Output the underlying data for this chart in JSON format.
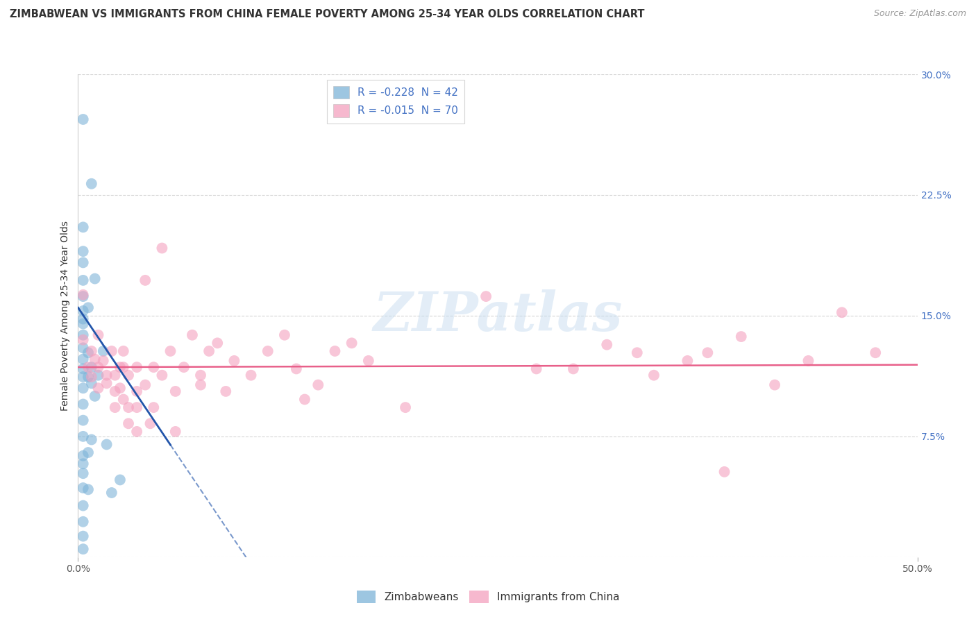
{
  "title": "ZIMBABWEAN VS IMMIGRANTS FROM CHINA FEMALE POVERTY AMONG 25-34 YEAR OLDS CORRELATION CHART",
  "source": "Source: ZipAtlas.com",
  "ylabel": "Female Poverty Among 25-34 Year Olds",
  "xlim": [
    0.0,
    0.5
  ],
  "ylim": [
    0.0,
    0.3
  ],
  "xtick_positions": [
    0.0,
    0.5
  ],
  "xtick_labels": [
    "0.0%",
    "50.0%"
  ],
  "ytick_positions": [
    0.0,
    0.075,
    0.15,
    0.225,
    0.3
  ],
  "ytick_labels": [
    "",
    "7.5%",
    "15.0%",
    "22.5%",
    "30.0%"
  ],
  "right_ytick_color": "#4472c4",
  "legend_entry1": "R = -0.228  N = 42",
  "legend_entry2": "R = -0.015  N = 70",
  "legend_text_color": "#4472c4",
  "blue_scatter_color": "#7db3d8",
  "pink_scatter_color": "#f4a0be",
  "blue_line_color": "#2255aa",
  "pink_line_color": "#e8608a",
  "watermark_color": "#c8ddf0",
  "grid_color": "#cccccc",
  "background_color": "#ffffff",
  "zimbabwean_points": [
    [
      0.003,
      0.272
    ],
    [
      0.003,
      0.205
    ],
    [
      0.003,
      0.19
    ],
    [
      0.003,
      0.183
    ],
    [
      0.003,
      0.172
    ],
    [
      0.003,
      0.162
    ],
    [
      0.003,
      0.153
    ],
    [
      0.003,
      0.145
    ],
    [
      0.003,
      0.138
    ],
    [
      0.003,
      0.13
    ],
    [
      0.003,
      0.123
    ],
    [
      0.003,
      0.117
    ],
    [
      0.003,
      0.112
    ],
    [
      0.003,
      0.105
    ],
    [
      0.003,
      0.095
    ],
    [
      0.003,
      0.085
    ],
    [
      0.003,
      0.075
    ],
    [
      0.003,
      0.063
    ],
    [
      0.003,
      0.052
    ],
    [
      0.003,
      0.043
    ],
    [
      0.003,
      0.032
    ],
    [
      0.003,
      0.022
    ],
    [
      0.003,
      0.013
    ],
    [
      0.003,
      0.005
    ],
    [
      0.006,
      0.127
    ],
    [
      0.006,
      0.112
    ],
    [
      0.006,
      0.065
    ],
    [
      0.006,
      0.042
    ],
    [
      0.008,
      0.232
    ],
    [
      0.008,
      0.118
    ],
    [
      0.008,
      0.073
    ],
    [
      0.01,
      0.173
    ],
    [
      0.01,
      0.1
    ],
    [
      0.012,
      0.113
    ],
    [
      0.015,
      0.128
    ],
    [
      0.017,
      0.07
    ],
    [
      0.02,
      0.04
    ],
    [
      0.025,
      0.048
    ],
    [
      0.003,
      0.148
    ],
    [
      0.003,
      0.058
    ],
    [
      0.006,
      0.155
    ],
    [
      0.008,
      0.108
    ]
  ],
  "china_points": [
    [
      0.003,
      0.163
    ],
    [
      0.003,
      0.135
    ],
    [
      0.006,
      0.118
    ],
    [
      0.008,
      0.128
    ],
    [
      0.008,
      0.112
    ],
    [
      0.01,
      0.123
    ],
    [
      0.012,
      0.138
    ],
    [
      0.012,
      0.118
    ],
    [
      0.012,
      0.105
    ],
    [
      0.015,
      0.122
    ],
    [
      0.017,
      0.113
    ],
    [
      0.017,
      0.108
    ],
    [
      0.02,
      0.128
    ],
    [
      0.022,
      0.113
    ],
    [
      0.022,
      0.103
    ],
    [
      0.022,
      0.093
    ],
    [
      0.025,
      0.118
    ],
    [
      0.025,
      0.105
    ],
    [
      0.027,
      0.128
    ],
    [
      0.027,
      0.118
    ],
    [
      0.027,
      0.098
    ],
    [
      0.03,
      0.113
    ],
    [
      0.03,
      0.093
    ],
    [
      0.03,
      0.083
    ],
    [
      0.035,
      0.118
    ],
    [
      0.035,
      0.103
    ],
    [
      0.035,
      0.093
    ],
    [
      0.035,
      0.078
    ],
    [
      0.04,
      0.172
    ],
    [
      0.04,
      0.107
    ],
    [
      0.043,
      0.083
    ],
    [
      0.045,
      0.118
    ],
    [
      0.045,
      0.093
    ],
    [
      0.05,
      0.192
    ],
    [
      0.05,
      0.113
    ],
    [
      0.055,
      0.128
    ],
    [
      0.058,
      0.103
    ],
    [
      0.058,
      0.078
    ],
    [
      0.063,
      0.118
    ],
    [
      0.068,
      0.138
    ],
    [
      0.073,
      0.113
    ],
    [
      0.073,
      0.107
    ],
    [
      0.078,
      0.128
    ],
    [
      0.083,
      0.133
    ],
    [
      0.088,
      0.103
    ],
    [
      0.093,
      0.122
    ],
    [
      0.103,
      0.113
    ],
    [
      0.113,
      0.128
    ],
    [
      0.123,
      0.138
    ],
    [
      0.13,
      0.117
    ],
    [
      0.135,
      0.098
    ],
    [
      0.143,
      0.107
    ],
    [
      0.153,
      0.128
    ],
    [
      0.163,
      0.133
    ],
    [
      0.173,
      0.122
    ],
    [
      0.195,
      0.093
    ],
    [
      0.243,
      0.162
    ],
    [
      0.273,
      0.117
    ],
    [
      0.295,
      0.117
    ],
    [
      0.315,
      0.132
    ],
    [
      0.333,
      0.127
    ],
    [
      0.343,
      0.113
    ],
    [
      0.363,
      0.122
    ],
    [
      0.375,
      0.127
    ],
    [
      0.385,
      0.053
    ],
    [
      0.395,
      0.137
    ],
    [
      0.415,
      0.107
    ],
    [
      0.435,
      0.122
    ],
    [
      0.455,
      0.152
    ],
    [
      0.475,
      0.127
    ]
  ]
}
